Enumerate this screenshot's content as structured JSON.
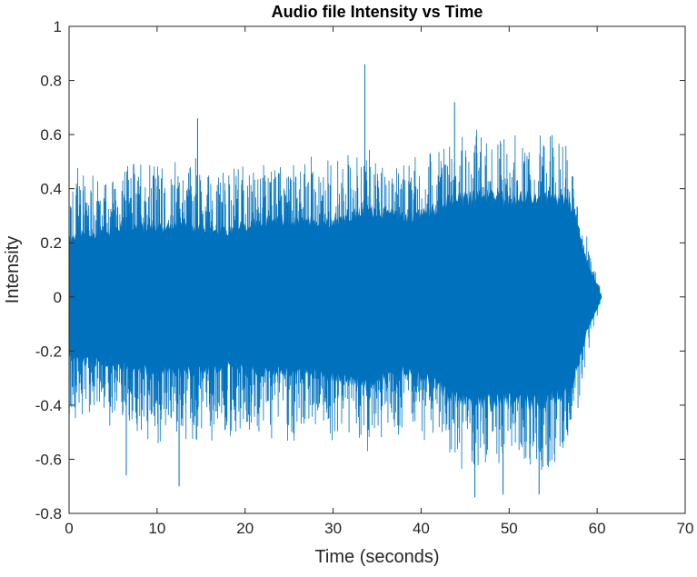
{
  "chart_data": {
    "type": "line",
    "title": "Audio file Intensity vs Time",
    "xlabel": "Time (seconds)",
    "ylabel": "Intensity",
    "xlim": [
      0,
      70
    ],
    "ylim": [
      -0.8,
      1
    ],
    "xticks": [
      0,
      10,
      20,
      30,
      40,
      50,
      60,
      70
    ],
    "yticks": [
      -0.8,
      -0.6,
      -0.4,
      -0.2,
      0,
      0.2,
      0.4,
      0.6,
      0.8,
      1
    ],
    "xtick_labels": [
      "0",
      "10",
      "20",
      "30",
      "40",
      "50",
      "60",
      "70"
    ],
    "ytick_labels": [
      "-0.8",
      "-0.6",
      "-0.4",
      "-0.2",
      "0",
      "0.2",
      "0.4",
      "0.6",
      "0.8",
      "1"
    ],
    "grid": false,
    "series": [
      {
        "color": "#0072BD",
        "envelope": {
          "t": [
            0,
            1,
            3,
            6,
            10,
            14,
            18,
            22,
            26,
            30,
            34,
            38,
            42,
            43,
            46,
            50,
            54,
            57,
            58,
            59,
            60,
            60.5
          ],
          "upper": [
            0.42,
            0.48,
            0.45,
            0.52,
            0.5,
            0.52,
            0.5,
            0.5,
            0.52,
            0.52,
            0.56,
            0.5,
            0.55,
            0.6,
            0.62,
            0.6,
            0.62,
            0.58,
            0.38,
            0.22,
            0.1,
            0.0
          ],
          "lower": [
            -0.5,
            -0.45,
            -0.45,
            -0.5,
            -0.55,
            -0.55,
            -0.52,
            -0.52,
            -0.55,
            -0.55,
            -0.58,
            -0.5,
            -0.55,
            -0.62,
            -0.65,
            -0.62,
            -0.65,
            -0.58,
            -0.38,
            -0.2,
            -0.08,
            0.0
          ],
          "dense_upper": [
            0.22,
            0.25,
            0.25,
            0.28,
            0.28,
            0.28,
            0.26,
            0.3,
            0.3,
            0.3,
            0.35,
            0.32,
            0.35,
            0.38,
            0.4,
            0.4,
            0.4,
            0.38,
            0.25,
            0.12,
            0.05,
            0.0
          ],
          "dense_lower": [
            -0.22,
            -0.25,
            -0.25,
            -0.28,
            -0.3,
            -0.3,
            -0.28,
            -0.3,
            -0.3,
            -0.32,
            -0.35,
            -0.3,
            -0.35,
            -0.4,
            -0.42,
            -0.42,
            -0.42,
            -0.38,
            -0.25,
            -0.12,
            -0.05,
            0.0
          ]
        },
        "peaks": [
          {
            "t": 33.6,
            "y": 0.86
          },
          {
            "t": 46.1,
            "y": -0.74
          },
          {
            "t": 49.3,
            "y": -0.73
          },
          {
            "t": 53.4,
            "y": -0.73
          },
          {
            "t": 12.5,
            "y": -0.7
          },
          {
            "t": 6.5,
            "y": -0.66
          },
          {
            "t": 14.6,
            "y": 0.66
          },
          {
            "t": 43.8,
            "y": 0.72
          }
        ]
      }
    ]
  }
}
